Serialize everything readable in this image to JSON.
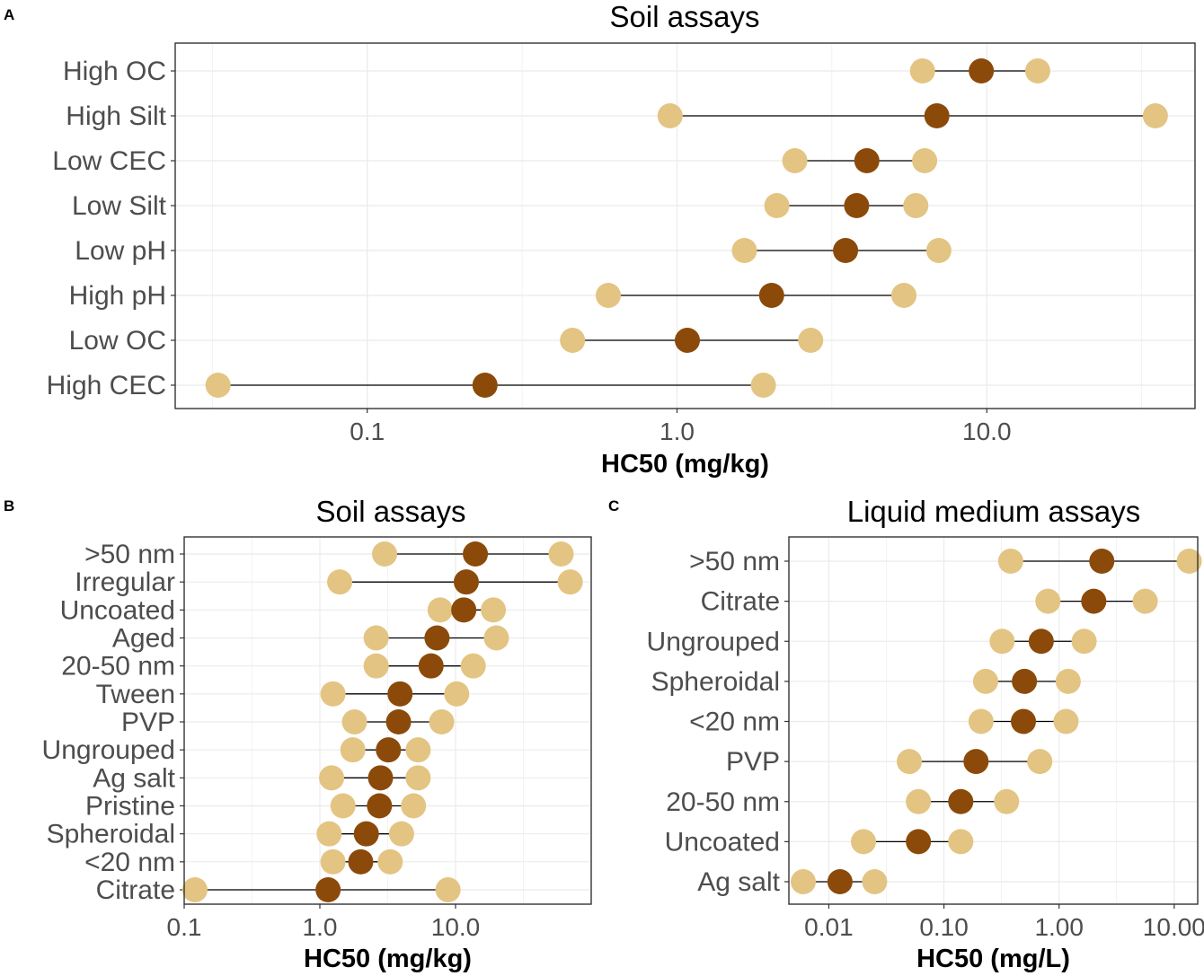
{
  "chart_data": [
    {
      "panel": "A",
      "type": "scatter",
      "title": "Soil assays",
      "xlabel": "HC50 (mg/kg)",
      "ylabel": "",
      "x_scale": "log10",
      "xlim": [
        0.024,
        47
      ],
      "x_ticks": [
        {
          "value": 0.1,
          "label": "0.1"
        },
        {
          "value": 1,
          "label": "1.0"
        },
        {
          "value": 10,
          "label": "10.0"
        }
      ],
      "grid": true,
      "colors": {
        "point": "#8B4A0A",
        "interval": "#E3C482",
        "line": "#000000"
      },
      "categories": [
        "High OC",
        "High Silt",
        "Low CEC",
        "Low Silt",
        "Low pH",
        "High pH",
        "Low OC",
        "High CEC"
      ],
      "rows": [
        {
          "label": "High OC",
          "low": 6.2,
          "value": 9.6,
          "high": 14.6
        },
        {
          "label": "High Silt",
          "low": 0.95,
          "value": 6.9,
          "high": 35
        },
        {
          "label": "Low CEC",
          "low": 2.4,
          "value": 4.1,
          "high": 6.3
        },
        {
          "label": "Low Silt",
          "low": 2.1,
          "value": 3.8,
          "high": 5.9
        },
        {
          "label": "Low pH",
          "low": 1.65,
          "value": 3.5,
          "high": 7.0
        },
        {
          "label": "High pH",
          "low": 0.6,
          "value": 2.02,
          "high": 5.4
        },
        {
          "label": "Low OC",
          "low": 0.46,
          "value": 1.08,
          "high": 2.7
        },
        {
          "label": "High CEC",
          "low": 0.033,
          "value": 0.24,
          "high": 1.9
        }
      ]
    },
    {
      "panel": "B",
      "type": "scatter",
      "title": "Soil assays",
      "xlabel": "HC50 (mg/kg)",
      "ylabel": "",
      "x_scale": "log10",
      "xlim": [
        0.1,
        100
      ],
      "x_ticks": [
        {
          "value": 0.1,
          "label": "0.1"
        },
        {
          "value": 1,
          "label": "1.0"
        },
        {
          "value": 10,
          "label": "10.0"
        }
      ],
      "grid": true,
      "colors": {
        "point": "#8B4A0A",
        "interval": "#E3C482",
        "line": "#000000"
      },
      "categories": [
        ">50 nm",
        "Irregular",
        "Uncoated",
        "Aged",
        "20-50 nm",
        "Tween",
        "PVP",
        "Ungrouped",
        "Ag salt",
        "Pristine",
        "Spheroidal",
        "<20 nm",
        "Citrate"
      ],
      "rows": [
        {
          "label": ">50 nm",
          "low": 3.0,
          "value": 14,
          "high": 60
        },
        {
          "label": "Irregular",
          "low": 1.4,
          "value": 12,
          "high": 70
        },
        {
          "label": "Uncoated",
          "low": 7.7,
          "value": 11.5,
          "high": 19
        },
        {
          "label": "Aged",
          "low": 2.6,
          "value": 7.3,
          "high": 20
        },
        {
          "label": "20-50 nm",
          "low": 2.6,
          "value": 6.6,
          "high": 13.5
        },
        {
          "label": "Tween",
          "low": 1.25,
          "value": 3.9,
          "high": 10.2
        },
        {
          "label": "PVP",
          "low": 1.8,
          "value": 3.8,
          "high": 7.9
        },
        {
          "label": "Ungrouped",
          "low": 1.75,
          "value": 3.2,
          "high": 5.3
        },
        {
          "label": "Ag salt",
          "low": 1.22,
          "value": 2.8,
          "high": 5.3
        },
        {
          "label": "Pristine",
          "low": 1.48,
          "value": 2.75,
          "high": 4.9
        },
        {
          "label": "Spheroidal",
          "low": 1.17,
          "value": 2.2,
          "high": 4.0
        },
        {
          "label": "<20 nm",
          "low": 1.25,
          "value": 2.0,
          "high": 3.3
        },
        {
          "label": "Citrate",
          "low": 0.12,
          "value": 1.15,
          "high": 8.8
        }
      ]
    },
    {
      "panel": "C",
      "type": "scatter",
      "title": "Liquid medium assays",
      "xlabel": "HC50 (mg/L)",
      "ylabel": "",
      "x_scale": "log10",
      "xlim": [
        0.0045,
        16
      ],
      "x_ticks": [
        {
          "value": 0.01,
          "label": "0.01"
        },
        {
          "value": 0.1,
          "label": "0.10"
        },
        {
          "value": 1,
          "label": "1.00"
        },
        {
          "value": 10,
          "label": "10.00"
        }
      ],
      "grid": true,
      "colors": {
        "point": "#8B4A0A",
        "interval": "#E3C482",
        "line": "#000000"
      },
      "categories": [
        ">50 nm",
        "Citrate",
        "Ungrouped",
        "Spheroidal",
        "<20 nm",
        "PVP",
        "20-50 nm",
        "Uncoated",
        "Ag salt"
      ],
      "rows": [
        {
          "label": ">50 nm",
          "low": 0.38,
          "value": 2.35,
          "high": 13.5
        },
        {
          "label": "Citrate",
          "low": 0.8,
          "value": 2.0,
          "high": 5.6
        },
        {
          "label": "Ungrouped",
          "low": 0.32,
          "value": 0.7,
          "high": 1.65
        },
        {
          "label": "Spheroidal",
          "low": 0.23,
          "value": 0.5,
          "high": 1.2
        },
        {
          "label": "<20 nm",
          "low": 0.21,
          "value": 0.49,
          "high": 1.15
        },
        {
          "label": "PVP",
          "low": 0.05,
          "value": 0.19,
          "high": 0.68
        },
        {
          "label": "20-50 nm",
          "low": 0.06,
          "value": 0.14,
          "high": 0.35
        },
        {
          "label": "Uncoated",
          "low": 0.02,
          "value": 0.06,
          "high": 0.14
        },
        {
          "label": "Ag salt",
          "low": 0.006,
          "value": 0.0125,
          "high": 0.025
        }
      ]
    }
  ]
}
